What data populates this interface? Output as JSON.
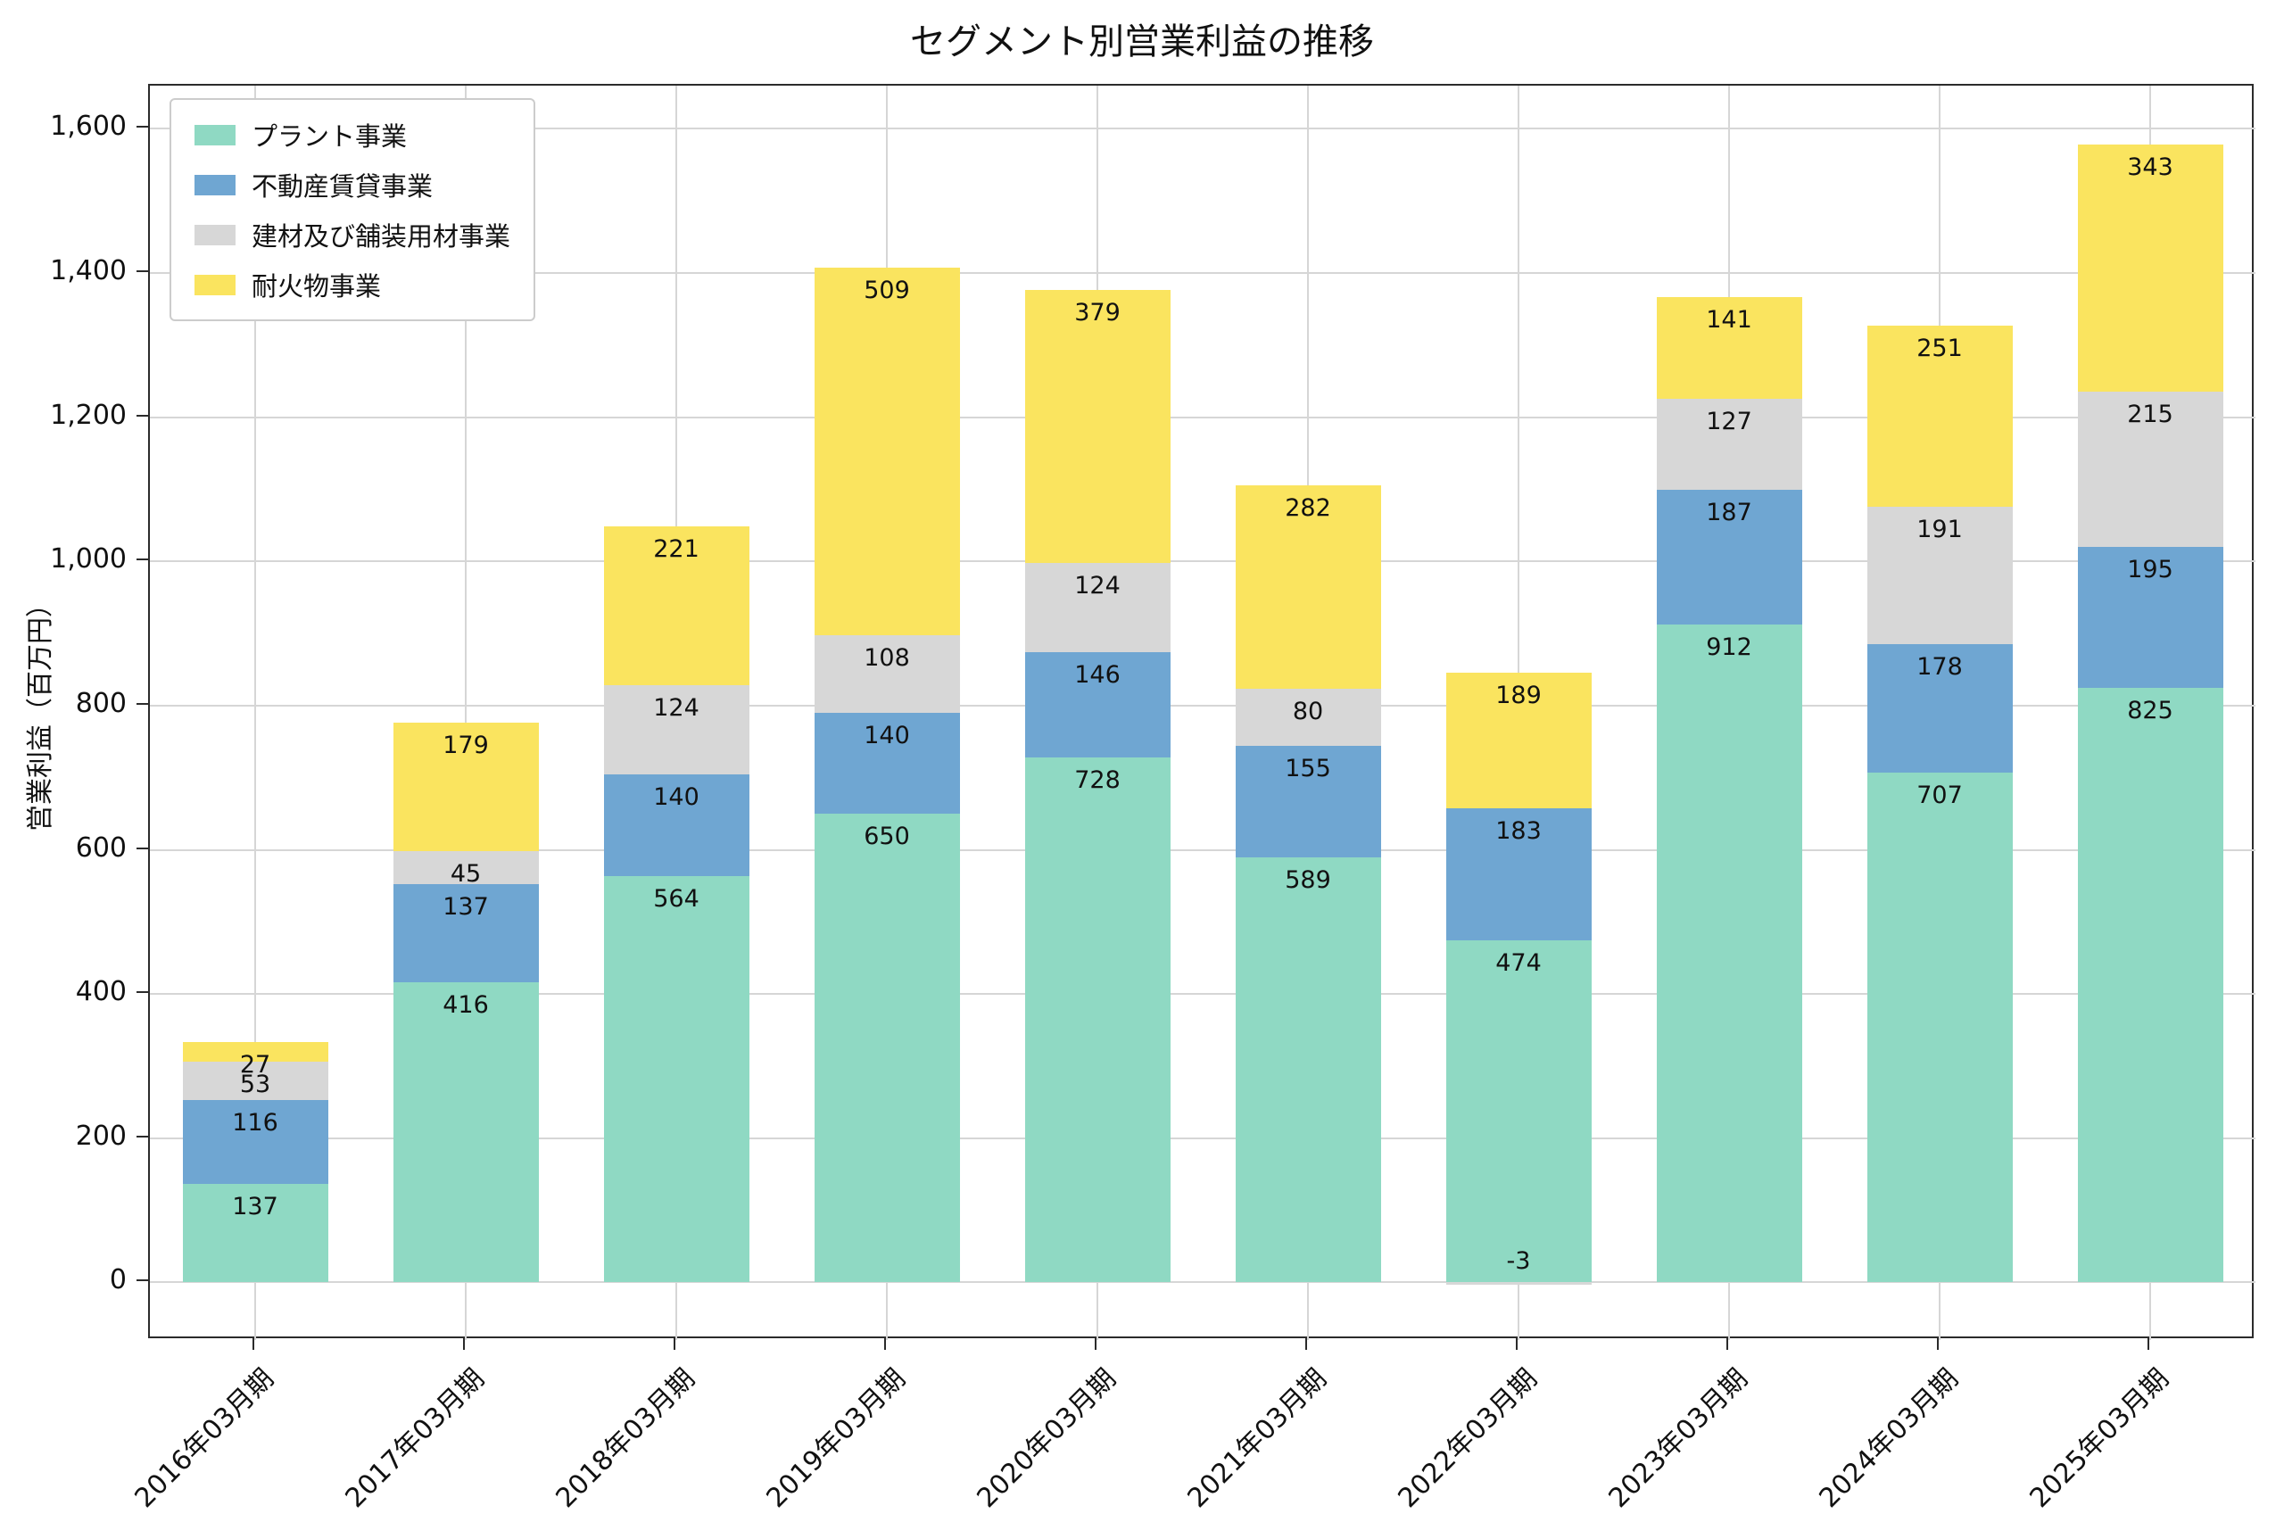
{
  "page": {
    "background": "#ffffff"
  },
  "chart_data": {
    "type": "bar",
    "stacked": true,
    "title": "セグメント別営業利益の推移",
    "ylabel": "営業利益（百万円）",
    "xlabel": "",
    "categories": [
      "2016年03月期",
      "2017年03月期",
      "2018年03月期",
      "2019年03月期",
      "2020年03月期",
      "2021年03月期",
      "2022年03月期",
      "2023年03月期",
      "2024年03月期",
      "2025年03月期"
    ],
    "series": [
      {
        "name": "プラント事業",
        "color": "#8FD9C3",
        "values": [
          137,
          416,
          564,
          650,
          728,
          589,
          474,
          912,
          707,
          825
        ]
      },
      {
        "name": "不動産賃貸事業",
        "color": "#6FA6D2",
        "values": [
          116,
          137,
          140,
          140,
          146,
          155,
          183,
          187,
          178,
          195
        ]
      },
      {
        "name": "建材及び舗装用材事業",
        "color": "#D7D7D7",
        "values": [
          53,
          45,
          124,
          108,
          124,
          80,
          -3,
          127,
          191,
          215
        ]
      },
      {
        "name": "耐火物事業",
        "color": "#FAE45F",
        "values": [
          27,
          179,
          221,
          509,
          379,
          282,
          189,
          141,
          251,
          343
        ]
      }
    ],
    "yticks": [
      0,
      200,
      400,
      600,
      800,
      1000,
      1200,
      1400,
      1600
    ],
    "ylim": [
      -80,
      1660
    ],
    "grid": true,
    "legend_position": "upper left"
  }
}
